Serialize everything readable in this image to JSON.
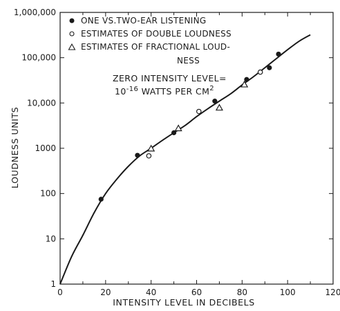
{
  "chart_data": {
    "type": "scatter",
    "xlabel": "INTENSITY LEVEL IN DECIBELS",
    "ylabel": "LOUDNESS UNITS",
    "x_ticks": [
      "0",
      "20",
      "40",
      "60",
      "80",
      "100",
      "120"
    ],
    "y_ticks": [
      "1",
      "10",
      "100",
      "1000",
      "10,000",
      "100,000",
      "1,000,000"
    ],
    "xlim": [
      0,
      120
    ],
    "ylim": [
      1,
      1000000
    ],
    "y_scale": "log",
    "grid": false,
    "legend_position": "top",
    "legend": [
      {
        "marker": "filled-circle",
        "label": "ONE VS.TWO-EAR LISTENING"
      },
      {
        "marker": "open-circle",
        "label": "ESTIMATES OF DOUBLE LOUDNESS"
      },
      {
        "marker": "open-triangle",
        "label": "ESTIMATES OF FRACTIONAL LOUD-",
        "label_cont": "NESS"
      }
    ],
    "annotation": {
      "line1": "ZERO INTENSITY LEVEL=",
      "line2_base": "10",
      "line2_exp": "-16",
      "line2_mid": " WATTS PER CM",
      "line2_exp2": "2"
    },
    "series": [
      {
        "name": "ONE VS.TWO-EAR LISTENING",
        "marker": "filled-circle",
        "x": [
          18,
          34,
          50,
          68,
          82,
          92,
          96
        ],
        "y": [
          75,
          700,
          2200,
          11000,
          33000,
          60000,
          120000
        ]
      },
      {
        "name": "ESTIMATES OF DOUBLE LOUDNESS",
        "marker": "open-circle",
        "x": [
          39,
          61,
          88
        ],
        "y": [
          680,
          6500,
          48000
        ]
      },
      {
        "name": "ESTIMATES OF FRACTIONAL LOUDNESS",
        "marker": "open-triangle",
        "x": [
          40,
          52,
          70,
          81
        ],
        "y": [
          1000,
          2800,
          8000,
          26000
        ]
      }
    ],
    "curve": {
      "x": [
        0,
        5,
        10,
        15,
        20,
        25,
        30,
        35,
        40,
        45,
        50,
        55,
        60,
        65,
        70,
        75,
        80,
        85,
        90,
        95,
        100,
        105,
        110
      ],
      "y": [
        1,
        4,
        12,
        38,
        100,
        210,
        400,
        680,
        1000,
        1500,
        2200,
        3200,
        5000,
        7500,
        11000,
        16000,
        25000,
        38000,
        60000,
        95000,
        150000,
        230000,
        320000
      ]
    }
  }
}
